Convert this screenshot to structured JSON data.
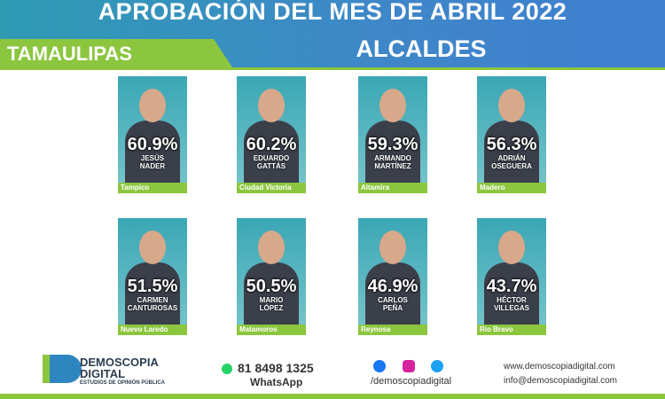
{
  "header": {
    "title": "APROBACIÓN DEL MES DE ABRIL 2022",
    "state": "TAMAULIPAS",
    "office": "ALCALDES"
  },
  "cards": [
    {
      "percent": "60.9%",
      "name": [
        "JESÚS",
        "NADER"
      ],
      "city": "Tampico"
    },
    {
      "percent": "60.2%",
      "name": [
        "EDUARDO",
        "GATTÁS"
      ],
      "city": "Ciudad Victoria"
    },
    {
      "percent": "59.3%",
      "name": [
        "ARMANDO",
        "MARTÍNEZ"
      ],
      "city": "Altamira"
    },
    {
      "percent": "56.3%",
      "name": [
        "ADRIÁN",
        "OSEGUERA"
      ],
      "city": "Madero"
    },
    {
      "percent": "51.5%",
      "name": [
        "CARMEN",
        "CANTUROSAS"
      ],
      "city": "Nuevo Laredo"
    },
    {
      "percent": "50.5%",
      "name": [
        "MARIO",
        "LÓPEZ"
      ],
      "city": "Matamoros"
    },
    {
      "percent": "46.9%",
      "name": [
        "CARLOS",
        "PEÑA"
      ],
      "city": "Reynosa"
    },
    {
      "percent": "43.7%",
      "name": [
        "HÉCTOR",
        "VILLEGAS"
      ],
      "city": "Río Bravo"
    }
  ],
  "footer": {
    "brand": "DEMOSCOPIA",
    "brand2": "DIGITAL",
    "tagline": "ESTUDIOS DE OPINIÓN PÚBLICA",
    "phone": "81 8498 1325",
    "phone_label": "WhatsApp",
    "social": "/demoscopiadigital",
    "web": "www.demoscopiadigital.com",
    "email": "info@demoscopiadigital.com"
  }
}
